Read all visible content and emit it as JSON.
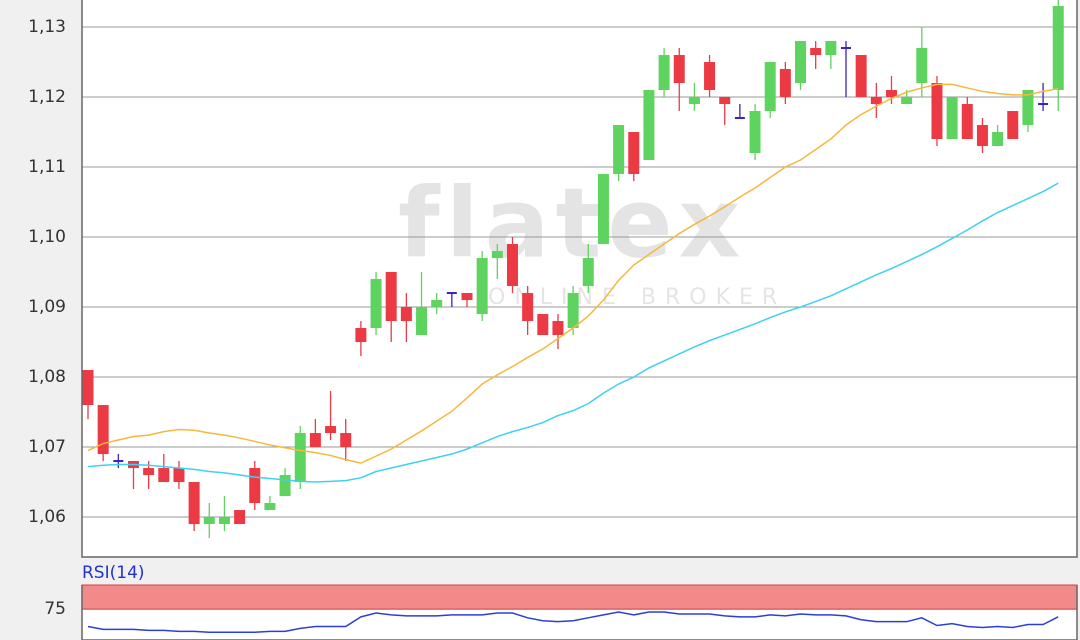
{
  "chart_data": [
    {
      "type": "candlestick",
      "watermark": "flatex",
      "watermark_sub": "ONLINE BROKER",
      "ylim": [
        1.05429,
        1.13386
      ],
      "yticks": [
        {
          "value": 1.06,
          "label": "1,06"
        },
        {
          "value": 1.07,
          "label": "1,07"
        },
        {
          "value": 1.08,
          "label": "1,08"
        },
        {
          "value": 1.09,
          "label": "1,09"
        },
        {
          "value": 1.1,
          "label": "1,10"
        },
        {
          "value": 1.11,
          "label": "1,11"
        },
        {
          "value": 1.12,
          "label": "1,12"
        },
        {
          "value": 1.13,
          "label": "1,13"
        }
      ],
      "grid": true,
      "up_color": "#5fd35f",
      "down_color": "#ec3a44",
      "doji_color": "#3b22b8",
      "open": [
        1.081,
        1.076,
        1.068,
        1.068,
        1.067,
        1.067,
        1.067,
        1.065,
        1.059,
        1.059,
        1.061,
        1.067,
        1.061,
        1.063,
        1.065,
        1.072,
        1.073,
        1.072,
        1.087,
        1.087,
        1.095,
        1.09,
        1.086,
        1.09,
        1.092,
        1.092,
        1.089,
        1.097,
        1.099,
        1.092,
        1.089,
        1.088,
        1.087,
        1.093,
        1.099,
        1.109,
        1.115,
        1.111,
        1.121,
        1.126,
        1.119,
        1.125,
        1.12,
        1.117,
        1.112,
        1.118,
        1.124,
        1.122,
        1.127,
        1.126,
        1.127,
        1.126,
        1.12,
        1.121,
        1.119,
        1.122,
        1.122,
        1.114,
        1.119,
        1.116,
        1.113,
        1.118,
        1.116,
        1.119,
        1.121
      ],
      "high": [
        1.081,
        1.076,
        1.069,
        1.068,
        1.068,
        1.069,
        1.068,
        1.065,
        1.062,
        1.063,
        1.061,
        1.068,
        1.063,
        1.067,
        1.073,
        1.074,
        1.078,
        1.074,
        1.088,
        1.095,
        1.095,
        1.092,
        1.095,
        1.092,
        1.092,
        1.092,
        1.098,
        1.099,
        1.1,
        1.093,
        1.089,
        1.089,
        1.093,
        1.099,
        1.109,
        1.116,
        1.115,
        1.121,
        1.127,
        1.127,
        1.122,
        1.126,
        1.12,
        1.119,
        1.119,
        1.125,
        1.125,
        1.128,
        1.128,
        1.128,
        1.128,
        1.126,
        1.122,
        1.123,
        1.121,
        1.13,
        1.123,
        1.12,
        1.12,
        1.117,
        1.116,
        1.118,
        1.121,
        1.122,
        1.134
      ],
      "low": [
        1.074,
        1.068,
        1.067,
        1.064,
        1.064,
        1.065,
        1.064,
        1.058,
        1.057,
        1.058,
        1.059,
        1.061,
        1.061,
        1.063,
        1.064,
        1.07,
        1.071,
        1.068,
        1.083,
        1.086,
        1.085,
        1.085,
        1.086,
        1.089,
        1.09,
        1.09,
        1.088,
        1.094,
        1.092,
        1.086,
        1.086,
        1.084,
        1.086,
        1.092,
        1.099,
        1.108,
        1.108,
        1.111,
        1.12,
        1.118,
        1.118,
        1.12,
        1.116,
        1.117,
        1.111,
        1.117,
        1.119,
        1.121,
        1.124,
        1.124,
        1.12,
        1.12,
        1.117,
        1.119,
        1.119,
        1.12,
        1.113,
        1.114,
        1.114,
        1.112,
        1.113,
        1.114,
        1.115,
        1.118,
        1.118
      ],
      "close": [
        1.076,
        1.069,
        1.068,
        1.067,
        1.066,
        1.065,
        1.065,
        1.059,
        1.06,
        1.06,
        1.059,
        1.062,
        1.062,
        1.066,
        1.072,
        1.07,
        1.072,
        1.07,
        1.085,
        1.094,
        1.088,
        1.088,
        1.09,
        1.091,
        1.092,
        1.091,
        1.097,
        1.098,
        1.093,
        1.088,
        1.086,
        1.086,
        1.092,
        1.097,
        1.109,
        1.116,
        1.109,
        1.121,
        1.126,
        1.122,
        1.12,
        1.121,
        1.119,
        1.117,
        1.118,
        1.125,
        1.12,
        1.128,
        1.126,
        1.128,
        1.127,
        1.12,
        1.119,
        1.12,
        1.12,
        1.127,
        1.114,
        1.12,
        1.114,
        1.113,
        1.115,
        1.114,
        1.121,
        1.119,
        1.133
      ],
      "series": [
        {
          "color": "#f5b83c",
          "values": [
            1.0695,
            1.0705,
            1.071,
            1.0715,
            1.0717,
            1.0722,
            1.0725,
            1.0724,
            1.072,
            1.0717,
            1.0713,
            1.0708,
            1.0703,
            1.0699,
            1.0695,
            1.0692,
            1.0688,
            1.0682,
            1.0677,
            1.0687,
            1.0697,
            1.071,
            1.0723,
            1.0737,
            1.0751,
            1.077,
            1.079,
            1.0803,
            1.0815,
            1.0828,
            1.084,
            1.0855,
            1.087,
            1.0887,
            1.091,
            1.0938,
            1.096,
            1.0975,
            1.099,
            1.1005,
            1.1018,
            1.103,
            1.1043,
            1.1057,
            1.107,
            1.1085,
            1.11,
            1.111,
            1.1125,
            1.114,
            1.116,
            1.1175,
            1.1187,
            1.1198,
            1.1207,
            1.1213,
            1.1218,
            1.1218,
            1.1213,
            1.1208,
            1.1205,
            1.1203,
            1.1203,
            1.1208,
            1.1212
          ]
        },
        {
          "color": "#3fd0f2",
          "values": [
            1.0672,
            1.0674,
            1.0675,
            1.0675,
            1.0674,
            1.0672,
            1.067,
            1.0668,
            1.0665,
            1.0663,
            1.066,
            1.0657,
            1.0655,
            1.0653,
            1.0651,
            1.065,
            1.0651,
            1.0652,
            1.0656,
            1.0665,
            1.067,
            1.0675,
            1.068,
            1.0685,
            1.069,
            1.0697,
            1.0706,
            1.0715,
            1.0722,
            1.0728,
            1.0735,
            1.0745,
            1.0752,
            1.0762,
            1.0777,
            1.079,
            1.08,
            1.0813,
            1.0823,
            1.0833,
            1.0843,
            1.0852,
            1.086,
            1.0868,
            1.0876,
            1.0885,
            1.0893,
            1.09,
            1.0908,
            1.0916,
            1.0926,
            1.0936,
            1.0946,
            1.0955,
            1.0965,
            1.0975,
            1.0986,
            1.0998,
            1.101,
            1.1023,
            1.1035,
            1.1045,
            1.1055,
            1.1065,
            1.1077
          ]
        }
      ]
    },
    {
      "type": "line",
      "title": "RSI(14)",
      "ylim": [
        43,
        100
      ],
      "yticks": [
        75
      ],
      "band": [
        75,
        100
      ],
      "band_color": "#f28a8a",
      "grid": true,
      "series": [
        {
          "color": "#2b3fd6",
          "values": [
            57,
            54,
            54,
            54,
            53,
            53,
            52,
            52,
            51,
            51,
            51,
            51,
            52,
            52,
            55,
            57,
            57,
            57,
            67,
            71,
            69,
            68,
            68,
            68,
            69,
            69,
            69,
            71,
            71,
            66,
            63,
            62,
            63,
            66,
            69,
            72,
            69,
            72,
            72,
            70,
            70,
            70,
            68,
            67,
            67,
            69,
            68,
            70,
            69,
            69,
            68,
            64,
            62,
            62,
            62,
            66,
            58,
            60,
            57,
            56,
            57,
            56,
            59,
            59,
            67
          ]
        }
      ]
    }
  ]
}
